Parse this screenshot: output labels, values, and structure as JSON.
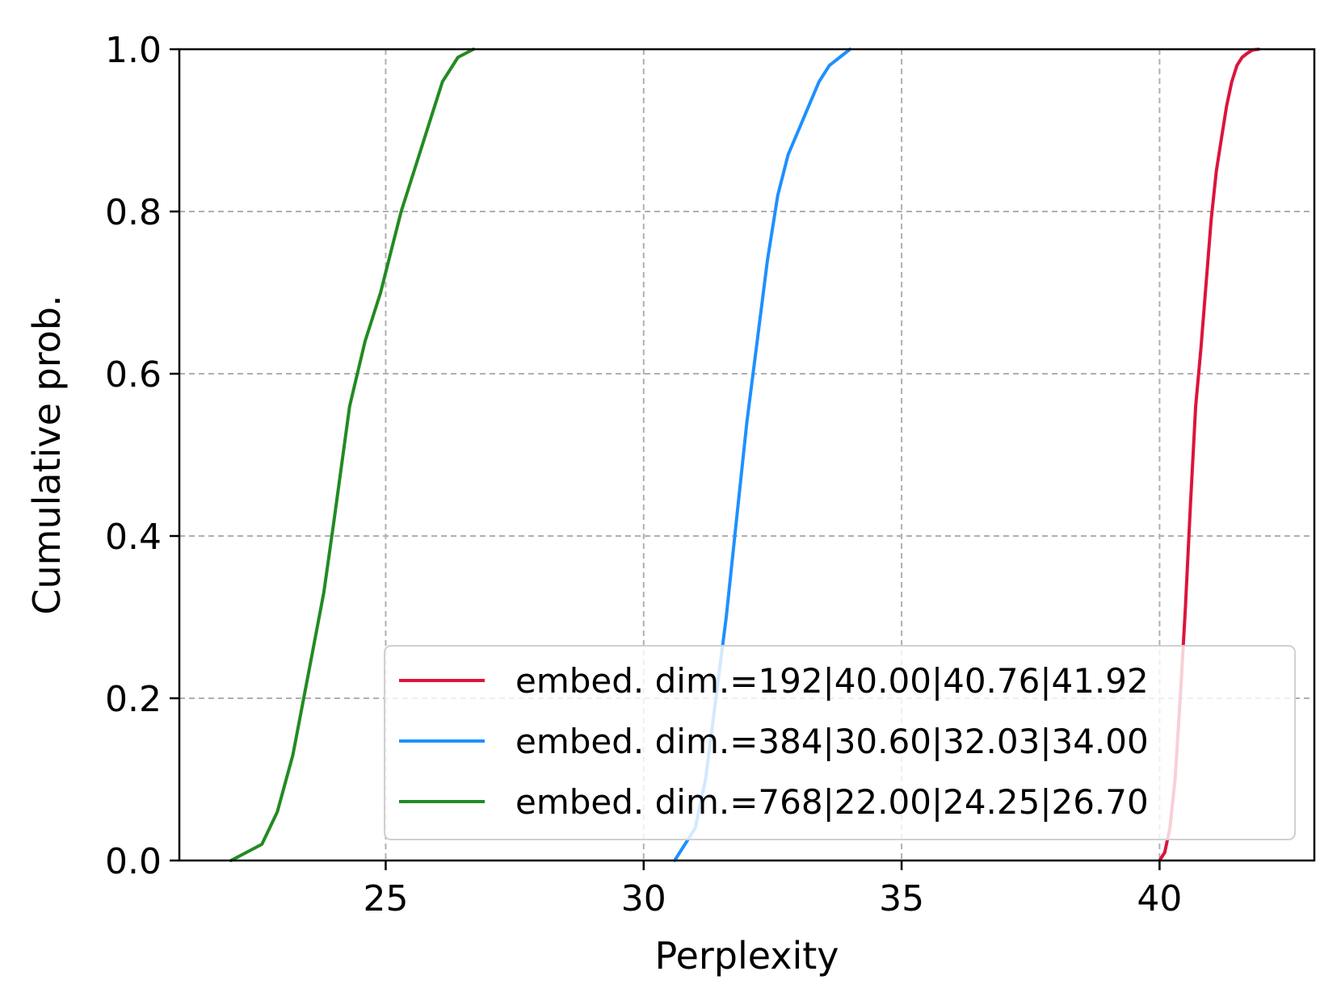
{
  "chart_data": {
    "type": "line",
    "title": "",
    "xlabel": "Perplexity",
    "ylabel": "Cumulative prob.",
    "xlim": [
      21,
      43
    ],
    "ylim": [
      0,
      1
    ],
    "xticks": [
      25,
      30,
      35,
      40
    ],
    "yticks": [
      0.0,
      0.2,
      0.4,
      0.6,
      0.8,
      1.0
    ],
    "xtick_labels": [
      "25",
      "30",
      "35",
      "40"
    ],
    "ytick_labels": [
      "0.0",
      "0.2",
      "0.4",
      "0.6",
      "0.8",
      "1.0"
    ],
    "grid": true,
    "legend_position": "lower-right",
    "series": [
      {
        "name": "embed. dim.=192|40.00|40.76|41.92",
        "color": "#dc143c",
        "x": [
          40.0,
          40.1,
          40.2,
          40.3,
          40.4,
          40.5,
          40.6,
          40.7,
          40.8,
          40.9,
          41.0,
          41.1,
          41.2,
          41.3,
          41.4,
          41.5,
          41.6,
          41.7,
          41.8,
          41.92
        ],
        "y": [
          0.0,
          0.01,
          0.04,
          0.1,
          0.2,
          0.31,
          0.44,
          0.56,
          0.63,
          0.71,
          0.79,
          0.85,
          0.89,
          0.93,
          0.96,
          0.98,
          0.99,
          0.995,
          0.999,
          1.0
        ]
      },
      {
        "name": "embed. dim.=384|30.60|32.03|34.00",
        "color": "#1e90ff",
        "x": [
          30.6,
          30.8,
          31.0,
          31.2,
          31.4,
          31.6,
          31.8,
          32.0,
          32.2,
          32.4,
          32.6,
          32.8,
          33.0,
          33.2,
          33.4,
          33.6,
          33.8,
          34.0
        ],
        "y": [
          0.0,
          0.02,
          0.04,
          0.1,
          0.2,
          0.3,
          0.42,
          0.54,
          0.64,
          0.74,
          0.82,
          0.87,
          0.9,
          0.93,
          0.96,
          0.98,
          0.99,
          1.0
        ]
      },
      {
        "name": "embed. dim.=768|22.00|24.25|26.70",
        "color": "#228b22",
        "x": [
          22.0,
          22.3,
          22.6,
          22.9,
          23.2,
          23.5,
          23.8,
          24.0,
          24.3,
          24.6,
          24.9,
          25.1,
          25.3,
          25.6,
          25.9,
          26.1,
          26.4,
          26.7
        ],
        "y": [
          0.0,
          0.01,
          0.02,
          0.06,
          0.13,
          0.23,
          0.33,
          0.42,
          0.56,
          0.64,
          0.7,
          0.75,
          0.8,
          0.86,
          0.92,
          0.96,
          0.99,
          1.0
        ]
      }
    ]
  }
}
